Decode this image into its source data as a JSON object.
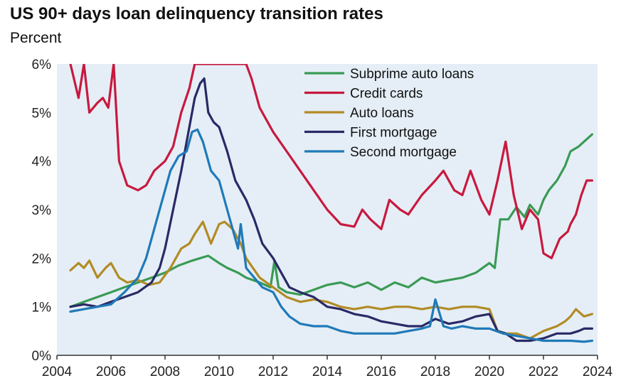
{
  "title": "US 90+ days loan delinquency transition rates",
  "subtitle": "Percent",
  "chart_data": {
    "type": "line",
    "title": "US 90+ days loan delinquency transition rates",
    "ylabel": "Percent",
    "xlim": [
      2004,
      2024
    ],
    "ylim": [
      0,
      6
    ],
    "xticks": [
      "2004",
      "2006",
      "2008",
      "2010",
      "2012",
      "2014",
      "2016",
      "2018",
      "2020",
      "2022",
      "2024"
    ],
    "yticks": [
      "0%",
      "1%",
      "2%",
      "3%",
      "4%",
      "5%",
      "6%"
    ],
    "grid": false,
    "legend": "top-right",
    "series": [
      {
        "name": "Subprime auto loans",
        "color": "#3a9a55",
        "x": [
          2004.5,
          2005,
          2005.5,
          2006,
          2006.5,
          2007,
          2007.5,
          2008,
          2008.5,
          2009,
          2009.3,
          2009.6,
          2010,
          2010.3,
          2010.7,
          2011,
          2011.5,
          2011.9,
          2012.05,
          2012.2,
          2012.5,
          2013,
          2013.5,
          2014,
          2014.5,
          2015,
          2015.5,
          2016,
          2016.5,
          2017,
          2017.5,
          2018,
          2018.5,
          2019,
          2019.5,
          2020,
          2020.2,
          2020.4,
          2020.7,
          2021,
          2021.3,
          2021.5,
          2021.8,
          2022,
          2022.2,
          2022.5,
          2022.8,
          2023,
          2023.3,
          2023.5,
          2023.8
        ],
        "y": [
          1.0,
          1.1,
          1.2,
          1.3,
          1.4,
          1.5,
          1.6,
          1.7,
          1.85,
          1.95,
          2.0,
          2.05,
          1.9,
          1.8,
          1.7,
          1.6,
          1.5,
          1.4,
          1.95,
          1.4,
          1.3,
          1.25,
          1.35,
          1.45,
          1.5,
          1.4,
          1.5,
          1.35,
          1.5,
          1.4,
          1.6,
          1.5,
          1.55,
          1.6,
          1.7,
          1.9,
          1.8,
          2.8,
          2.8,
          3.05,
          2.85,
          3.1,
          2.9,
          3.2,
          3.4,
          3.6,
          3.9,
          4.2,
          4.3,
          4.4,
          4.55
        ]
      },
      {
        "name": "Credit cards",
        "color": "#c8193f",
        "x": [
          2004.5,
          2004.8,
          2005,
          2005.2,
          2005.5,
          2005.7,
          2005.9,
          2006.1,
          2006.3,
          2006.6,
          2007,
          2007.3,
          2007.6,
          2008,
          2008.3,
          2008.6,
          2008.9,
          2009.1,
          2011.0,
          2011.2,
          2011.5,
          2012,
          2012.5,
          2013,
          2013.5,
          2014,
          2014.5,
          2015,
          2015.3,
          2015.6,
          2016,
          2016.3,
          2016.7,
          2017,
          2017.5,
          2018,
          2018.3,
          2018.7,
          2019,
          2019.3,
          2019.7,
          2020,
          2020.3,
          2020.6,
          2020.9,
          2021.2,
          2021.5,
          2021.8,
          2022,
          2022.3,
          2022.6,
          2022.9,
          2023,
          2023.2,
          2023.4,
          2023.6,
          2023.8
        ],
        "y": [
          6.0,
          5.3,
          6.0,
          5.0,
          5.2,
          5.3,
          5.1,
          6.0,
          4.0,
          3.5,
          3.4,
          3.5,
          3.8,
          4.0,
          4.3,
          5.0,
          5.5,
          6.0,
          6.0,
          5.7,
          5.1,
          4.6,
          4.2,
          3.8,
          3.4,
          3.0,
          2.7,
          2.65,
          3.0,
          2.8,
          2.6,
          3.2,
          3.0,
          2.9,
          3.3,
          3.6,
          3.8,
          3.4,
          3.3,
          3.8,
          3.2,
          2.9,
          3.6,
          4.4,
          3.3,
          2.6,
          3.0,
          2.8,
          2.1,
          2.0,
          2.4,
          2.55,
          2.7,
          2.9,
          3.3,
          3.6,
          3.6
        ]
      },
      {
        "name": "Auto loans",
        "color": "#b28b25",
        "x": [
          2004.5,
          2004.8,
          2005,
          2005.2,
          2005.5,
          2005.8,
          2006,
          2006.3,
          2006.6,
          2007,
          2007.4,
          2007.8,
          2008.2,
          2008.6,
          2008.9,
          2009.1,
          2009.4,
          2009.7,
          2010,
          2010.2,
          2010.5,
          2010.8,
          2011,
          2011.5,
          2012,
          2012.5,
          2013,
          2013.5,
          2014,
          2014.5,
          2015,
          2015.5,
          2016,
          2016.5,
          2017,
          2017.5,
          2018,
          2018.5,
          2019,
          2019.5,
          2020,
          2020.3,
          2020.6,
          2021,
          2021.5,
          2022,
          2022.5,
          2022.8,
          2023,
          2023.2,
          2023.5,
          2023.8
        ],
        "y": [
          1.75,
          1.9,
          1.8,
          1.95,
          1.6,
          1.8,
          1.9,
          1.6,
          1.5,
          1.55,
          1.45,
          1.5,
          1.8,
          2.2,
          2.3,
          2.5,
          2.75,
          2.3,
          2.7,
          2.75,
          2.6,
          2.3,
          2.0,
          1.6,
          1.4,
          1.2,
          1.1,
          1.15,
          1.1,
          1.0,
          0.95,
          1.0,
          0.95,
          1.0,
          1.0,
          0.95,
          1.0,
          0.95,
          1.0,
          1.0,
          0.95,
          0.5,
          0.45,
          0.45,
          0.35,
          0.5,
          0.6,
          0.7,
          0.8,
          0.95,
          0.8,
          0.85
        ]
      },
      {
        "name": "First mortgage",
        "color": "#2a2966",
        "x": [
          2004.5,
          2005,
          2005.5,
          2006,
          2006.5,
          2007,
          2007.5,
          2007.8,
          2008,
          2008.3,
          2008.6,
          2008.9,
          2009.1,
          2009.3,
          2009.45,
          2009.6,
          2009.8,
          2010,
          2010.3,
          2010.6,
          2011,
          2011.3,
          2011.6,
          2012,
          2012.3,
          2012.6,
          2013,
          2013.5,
          2014,
          2014.5,
          2015,
          2015.5,
          2016,
          2016.5,
          2017,
          2017.5,
          2018,
          2018.5,
          2019,
          2019.5,
          2020,
          2020.3,
          2020.6,
          2021,
          2021.5,
          2022,
          2022.5,
          2023,
          2023.3,
          2023.5,
          2023.8
        ],
        "y": [
          1.0,
          1.05,
          1.0,
          1.1,
          1.2,
          1.3,
          1.5,
          1.8,
          2.2,
          3.0,
          3.8,
          4.7,
          5.3,
          5.6,
          5.7,
          5.0,
          4.8,
          4.7,
          4.2,
          3.6,
          3.2,
          2.8,
          2.3,
          2.0,
          1.7,
          1.4,
          1.3,
          1.2,
          1.0,
          0.95,
          0.85,
          0.8,
          0.7,
          0.65,
          0.6,
          0.6,
          0.75,
          0.65,
          0.7,
          0.8,
          0.85,
          0.5,
          0.45,
          0.3,
          0.3,
          0.35,
          0.45,
          0.45,
          0.5,
          0.55,
          0.55
        ]
      },
      {
        "name": "Second mortgage",
        "color": "#1f7ab8",
        "x": [
          2004.5,
          2005,
          2005.5,
          2006,
          2006.5,
          2007,
          2007.3,
          2007.6,
          2007.9,
          2008.2,
          2008.5,
          2008.8,
          2009.0,
          2009.2,
          2009.4,
          2009.7,
          2010,
          2010.3,
          2010.5,
          2010.7,
          2010.8,
          2011,
          2011.3,
          2011.6,
          2012,
          2012.3,
          2012.6,
          2013,
          2013.5,
          2014,
          2014.5,
          2015,
          2015.5,
          2016,
          2016.5,
          2017,
          2017.5,
          2017.8,
          2018.0,
          2018.3,
          2018.6,
          2019,
          2019.5,
          2020,
          2020.5,
          2021,
          2021.5,
          2022,
          2022.5,
          2023,
          2023.5,
          2023.8
        ],
        "y": [
          0.9,
          0.95,
          1.0,
          1.05,
          1.3,
          1.6,
          2.0,
          2.6,
          3.2,
          3.8,
          4.1,
          4.2,
          4.6,
          4.65,
          4.4,
          3.8,
          3.6,
          3.0,
          2.6,
          2.2,
          2.7,
          1.8,
          1.6,
          1.4,
          1.3,
          1.0,
          0.8,
          0.65,
          0.6,
          0.6,
          0.5,
          0.45,
          0.45,
          0.45,
          0.45,
          0.5,
          0.55,
          0.6,
          1.15,
          0.6,
          0.55,
          0.6,
          0.55,
          0.55,
          0.45,
          0.4,
          0.35,
          0.3,
          0.3,
          0.3,
          0.28,
          0.3
        ]
      }
    ]
  }
}
